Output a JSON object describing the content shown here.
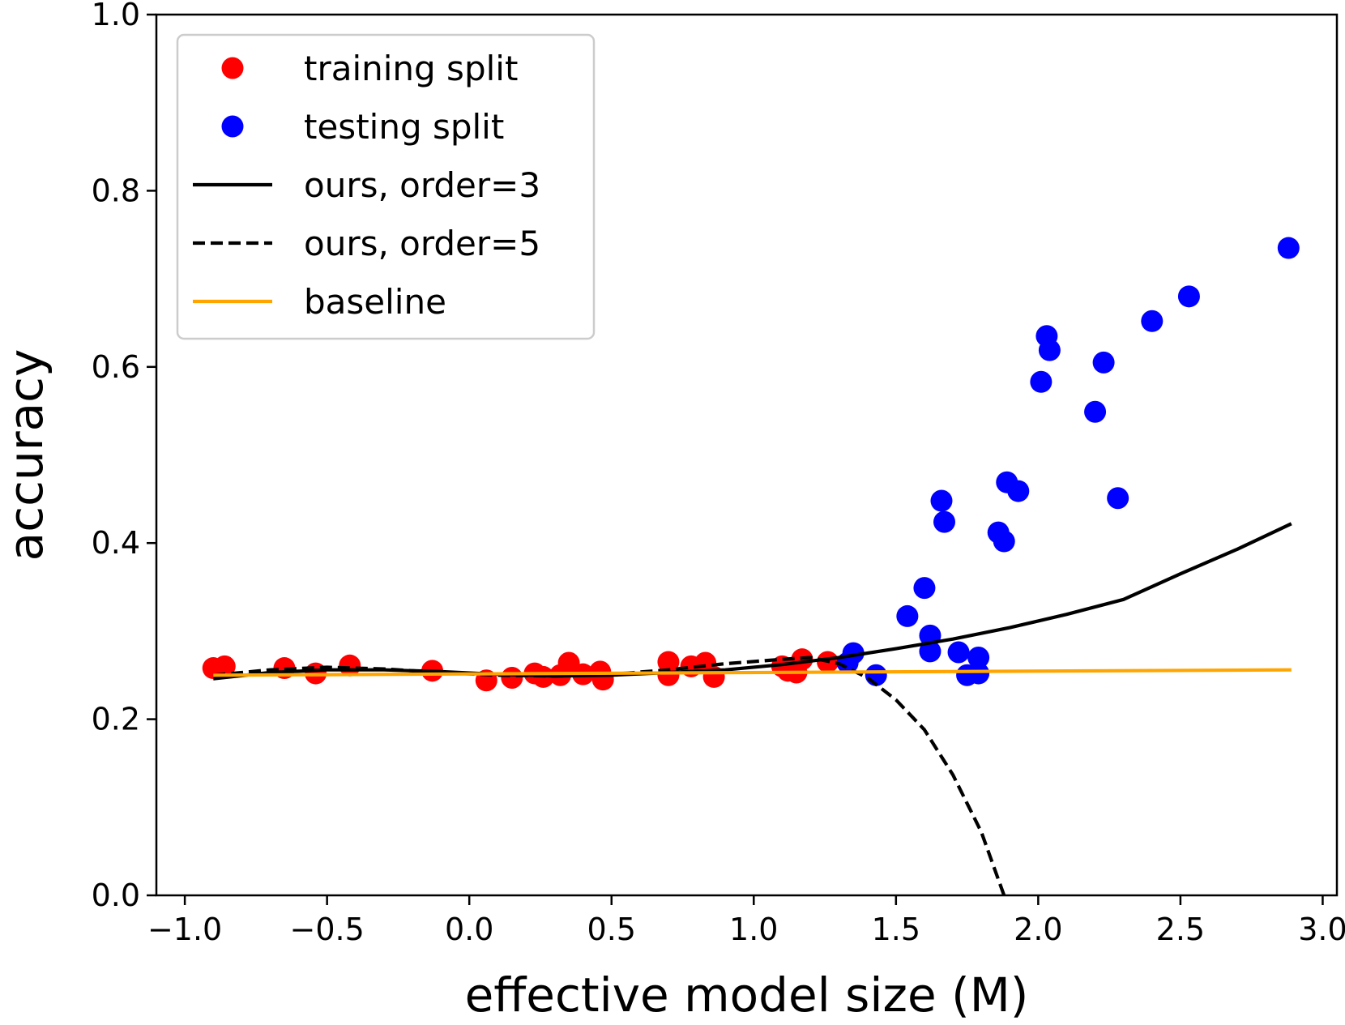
{
  "chart_data": {
    "type": "scatter",
    "xlabel": "effective model size (M)",
    "ylabel": "accuracy",
    "xlim": [
      -1.1,
      3.05
    ],
    "ylim": [
      0.0,
      1.0
    ],
    "x_ticks": [
      -1.0,
      -0.5,
      0.0,
      0.5,
      1.0,
      1.5,
      2.0,
      2.5,
      3.0
    ],
    "x_tick_labels": [
      "−1.0",
      "−0.5",
      "0.0",
      "0.5",
      "1.0",
      "1.5",
      "2.0",
      "2.5",
      "3.0"
    ],
    "y_ticks": [
      0.0,
      0.2,
      0.4,
      0.6,
      0.8,
      1.0
    ],
    "y_tick_labels": [
      "0.0",
      "0.2",
      "0.4",
      "0.6",
      "0.8",
      "1.0"
    ],
    "grid": false,
    "legend_position": "top-left",
    "series": [
      {
        "name": "training split",
        "kind": "scatter",
        "color": "#ff0000",
        "points": [
          [
            -0.9,
            0.258
          ],
          [
            -0.86,
            0.26
          ],
          [
            -0.65,
            0.258
          ],
          [
            -0.54,
            0.252
          ],
          [
            -0.42,
            0.261
          ],
          [
            -0.13,
            0.255
          ],
          [
            0.06,
            0.244
          ],
          [
            0.15,
            0.247
          ],
          [
            0.23,
            0.252
          ],
          [
            0.26,
            0.248
          ],
          [
            0.32,
            0.25
          ],
          [
            0.35,
            0.264
          ],
          [
            0.4,
            0.251
          ],
          [
            0.46,
            0.254
          ],
          [
            0.47,
            0.245
          ],
          [
            0.7,
            0.265
          ],
          [
            0.7,
            0.25
          ],
          [
            0.78,
            0.26
          ],
          [
            0.83,
            0.264
          ],
          [
            0.86,
            0.248
          ],
          [
            1.1,
            0.26
          ],
          [
            1.12,
            0.255
          ],
          [
            1.15,
            0.253
          ],
          [
            1.17,
            0.268
          ],
          [
            1.26,
            0.265
          ]
        ]
      },
      {
        "name": "testing split",
        "kind": "scatter",
        "color": "#0000ff",
        "points": [
          [
            1.33,
            0.264
          ],
          [
            1.35,
            0.275
          ],
          [
            1.43,
            0.25
          ],
          [
            1.54,
            0.317
          ],
          [
            1.6,
            0.349
          ],
          [
            1.62,
            0.295
          ],
          [
            1.62,
            0.277
          ],
          [
            1.66,
            0.448
          ],
          [
            1.67,
            0.424
          ],
          [
            1.72,
            0.276
          ],
          [
            1.75,
            0.25
          ],
          [
            1.79,
            0.27
          ],
          [
            1.79,
            0.252
          ],
          [
            1.86,
            0.412
          ],
          [
            1.88,
            0.402
          ],
          [
            1.89,
            0.469
          ],
          [
            1.93,
            0.459
          ],
          [
            2.01,
            0.583
          ],
          [
            2.03,
            0.635
          ],
          [
            2.04,
            0.619
          ],
          [
            2.2,
            0.549
          ],
          [
            2.23,
            0.605
          ],
          [
            2.28,
            0.451
          ],
          [
            2.4,
            0.652
          ],
          [
            2.53,
            0.68
          ],
          [
            2.88,
            0.735
          ]
        ]
      },
      {
        "name": "ours, order=3",
        "kind": "line",
        "style": "solid",
        "color": "#000000",
        "points": [
          [
            -0.9,
            0.246
          ],
          [
            -0.7,
            0.253
          ],
          [
            -0.5,
            0.256
          ],
          [
            -0.3,
            0.256
          ],
          [
            -0.1,
            0.254
          ],
          [
            0.1,
            0.251
          ],
          [
            0.3,
            0.249
          ],
          [
            0.5,
            0.25
          ],
          [
            0.7,
            0.253
          ],
          [
            0.9,
            0.256
          ],
          [
            1.1,
            0.262
          ],
          [
            1.3,
            0.27
          ],
          [
            1.5,
            0.28
          ],
          [
            1.7,
            0.291
          ],
          [
            1.9,
            0.304
          ],
          [
            2.1,
            0.319
          ],
          [
            2.3,
            0.336
          ],
          [
            2.5,
            0.365
          ],
          [
            2.7,
            0.393
          ],
          [
            2.89,
            0.422
          ]
        ]
      },
      {
        "name": "ours, order=5",
        "kind": "line",
        "style": "dashed",
        "color": "#000000",
        "points": [
          [
            -0.9,
            0.25
          ],
          [
            -0.7,
            0.256
          ],
          [
            -0.5,
            0.259
          ],
          [
            -0.3,
            0.257
          ],
          [
            -0.1,
            0.253
          ],
          [
            0.1,
            0.25
          ],
          [
            0.3,
            0.249
          ],
          [
            0.5,
            0.251
          ],
          [
            0.7,
            0.256
          ],
          [
            0.9,
            0.263
          ],
          [
            1.1,
            0.268
          ],
          [
            1.2,
            0.27
          ],
          [
            1.3,
            0.263
          ],
          [
            1.4,
            0.247
          ],
          [
            1.5,
            0.222
          ],
          [
            1.6,
            0.188
          ],
          [
            1.7,
            0.137
          ],
          [
            1.8,
            0.072
          ],
          [
            1.88,
            0.0
          ]
        ]
      },
      {
        "name": "baseline",
        "kind": "line",
        "style": "solid",
        "color": "#ffa500",
        "points": [
          [
            -0.9,
            0.25
          ],
          [
            2.89,
            0.256
          ]
        ]
      }
    ]
  }
}
